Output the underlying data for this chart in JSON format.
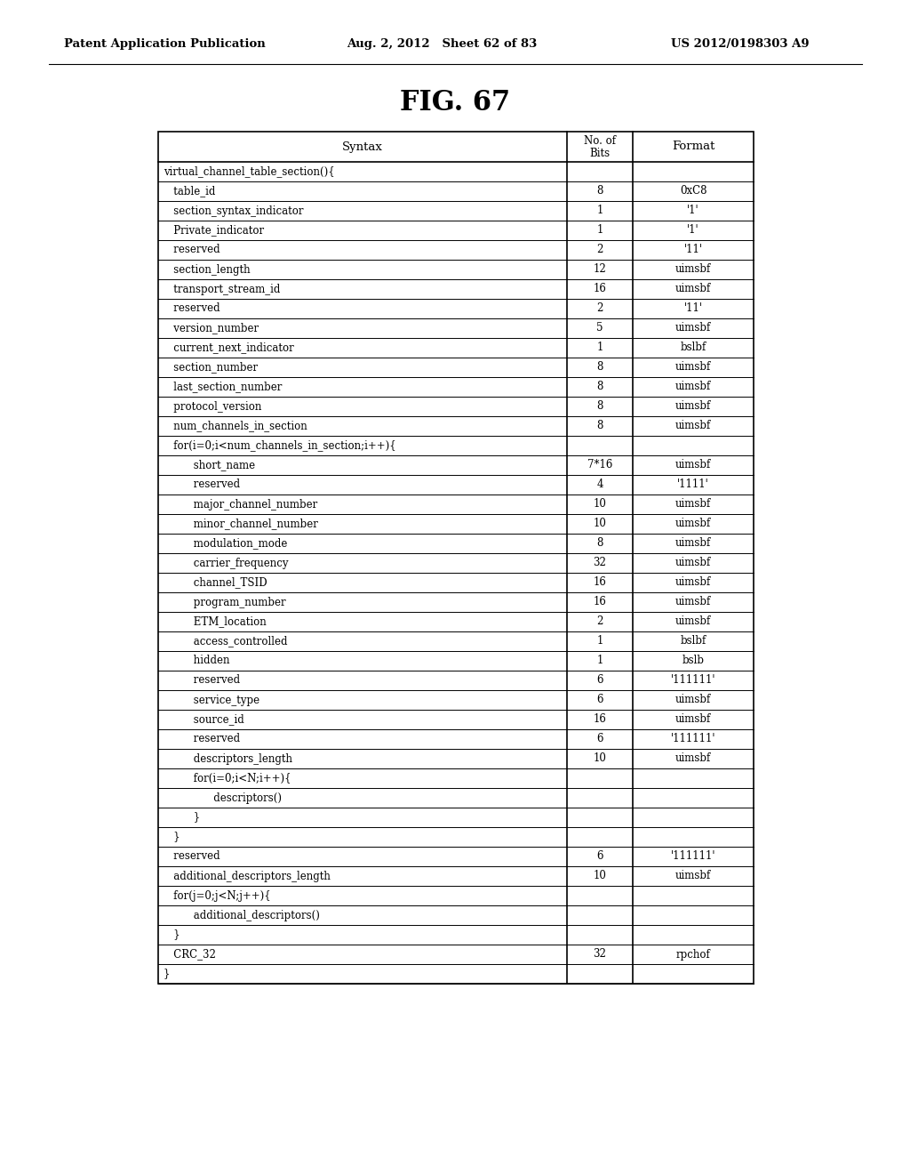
{
  "header_text_left": "Patent Application Publication",
  "header_text_mid": "Aug. 2, 2012   Sheet 62 of 83",
  "header_text_right": "US 2012/0198303 A9",
  "fig_title": "FIG. 67",
  "col_headers": [
    "Syntax",
    "No. of\nBits",
    "Format"
  ],
  "rows": [
    {
      "syntax": "virtual_channel_table_section(){",
      "indent": 0,
      "bits": "",
      "format": ""
    },
    {
      "syntax": "   table_id",
      "indent": 0,
      "bits": "8",
      "format": "0xC8"
    },
    {
      "syntax": "   section_syntax_indicator",
      "indent": 0,
      "bits": "1",
      "format": "'1'"
    },
    {
      "syntax": "   Private_indicator",
      "indent": 0,
      "bits": "1",
      "format": "'1'"
    },
    {
      "syntax": "   reserved",
      "indent": 0,
      "bits": "2",
      "format": "'11'"
    },
    {
      "syntax": "   section_length",
      "indent": 0,
      "bits": "12",
      "format": "uimsbf"
    },
    {
      "syntax": "   transport_stream_id",
      "indent": 0,
      "bits": "16",
      "format": "uimsbf"
    },
    {
      "syntax": "   reserved",
      "indent": 0,
      "bits": "2",
      "format": "'11'"
    },
    {
      "syntax": "   version_number",
      "indent": 0,
      "bits": "5",
      "format": "uimsbf"
    },
    {
      "syntax": "   current_next_indicator",
      "indent": 0,
      "bits": "1",
      "format": "bslbf"
    },
    {
      "syntax": "   section_number",
      "indent": 0,
      "bits": "8",
      "format": "uimsbf"
    },
    {
      "syntax": "   last_section_number",
      "indent": 0,
      "bits": "8",
      "format": "uimsbf"
    },
    {
      "syntax": "   protocol_version",
      "indent": 0,
      "bits": "8",
      "format": "uimsbf"
    },
    {
      "syntax": "   num_channels_in_section",
      "indent": 0,
      "bits": "8",
      "format": "uimsbf"
    },
    {
      "syntax": "   for(i=0;i<num_channels_in_section;i++){",
      "indent": 0,
      "bits": "",
      "format": ""
    },
    {
      "syntax": "         short_name",
      "indent": 0,
      "bits": "7*16",
      "format": "uimsbf"
    },
    {
      "syntax": "         reserved",
      "indent": 0,
      "bits": "4",
      "format": "'1111'"
    },
    {
      "syntax": "         major_channel_number",
      "indent": 0,
      "bits": "10",
      "format": "uimsbf"
    },
    {
      "syntax": "         minor_channel_number",
      "indent": 0,
      "bits": "10",
      "format": "uimsbf"
    },
    {
      "syntax": "         modulation_mode",
      "indent": 0,
      "bits": "8",
      "format": "uimsbf"
    },
    {
      "syntax": "         carrier_frequency",
      "indent": 0,
      "bits": "32",
      "format": "uimsbf"
    },
    {
      "syntax": "         channel_TSID",
      "indent": 0,
      "bits": "16",
      "format": "uimsbf"
    },
    {
      "syntax": "         program_number",
      "indent": 0,
      "bits": "16",
      "format": "uimsbf"
    },
    {
      "syntax": "         ETM_location",
      "indent": 0,
      "bits": "2",
      "format": "uimsbf"
    },
    {
      "syntax": "         access_controlled",
      "indent": 0,
      "bits": "1",
      "format": "bslbf"
    },
    {
      "syntax": "         hidden",
      "indent": 0,
      "bits": "1",
      "format": "bslb"
    },
    {
      "syntax": "         reserved",
      "indent": 0,
      "bits": "6",
      "format": "'111111'"
    },
    {
      "syntax": "         service_type",
      "indent": 0,
      "bits": "6",
      "format": "uimsbf"
    },
    {
      "syntax": "         source_id",
      "indent": 0,
      "bits": "16",
      "format": "uimsbf"
    },
    {
      "syntax": "         reserved",
      "indent": 0,
      "bits": "6",
      "format": "'111111'"
    },
    {
      "syntax": "         descriptors_length",
      "indent": 0,
      "bits": "10",
      "format": "uimsbf"
    },
    {
      "syntax": "         for(i=0;i<N;i++){",
      "indent": 0,
      "bits": "",
      "format": ""
    },
    {
      "syntax": "               descriptors()",
      "indent": 0,
      "bits": "",
      "format": ""
    },
    {
      "syntax": "         }",
      "indent": 0,
      "bits": "",
      "format": ""
    },
    {
      "syntax": "   }",
      "indent": 0,
      "bits": "",
      "format": ""
    },
    {
      "syntax": "   reserved",
      "indent": 0,
      "bits": "6",
      "format": "'111111'"
    },
    {
      "syntax": "   additional_descriptors_length",
      "indent": 0,
      "bits": "10",
      "format": "uimsbf"
    },
    {
      "syntax": "   for(j=0;j<N;j++){",
      "indent": 0,
      "bits": "",
      "format": ""
    },
    {
      "syntax": "         additional_descriptors()",
      "indent": 0,
      "bits": "",
      "format": ""
    },
    {
      "syntax": "   }",
      "indent": 0,
      "bits": "",
      "format": ""
    },
    {
      "syntax": "   CRC_32",
      "indent": 0,
      "bits": "32",
      "format": "rpchof"
    },
    {
      "syntax": "}",
      "indent": 0,
      "bits": "",
      "format": ""
    }
  ],
  "table_bg": "#ffffff",
  "text_color": "#000000",
  "line_color": "#000000",
  "font_size": 8.5,
  "header_font_size": 9.5,
  "fig_title_font_size": 22,
  "page_header_font_size": 9.5
}
